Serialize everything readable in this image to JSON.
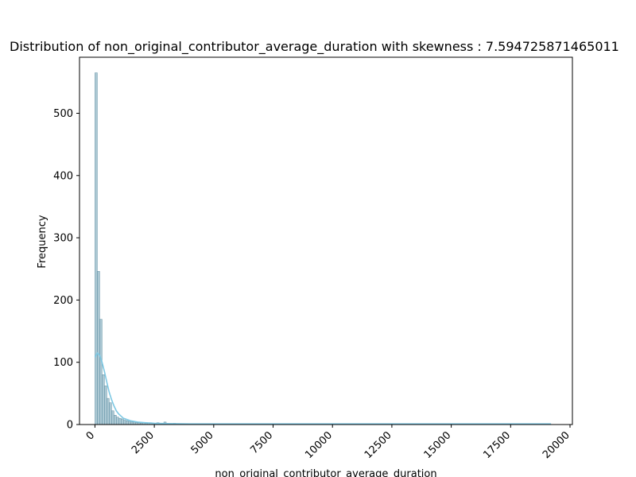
{
  "chart_data": {
    "type": "bar",
    "title": "Distribution of non_original_contributor_average_duration with skewness : 7.594725871465011",
    "xlabel": "non_original_contributor_average_duration",
    "ylabel": "Frequency",
    "xlim": [
      -650,
      20100
    ],
    "ylim": [
      0,
      590
    ],
    "x_ticks": [
      0,
      2500,
      5000,
      7500,
      10000,
      12500,
      15000,
      17500,
      20000
    ],
    "x_tick_labels": [
      "0",
      "2500",
      "5000",
      "7500",
      "10000",
      "12500",
      "15000",
      "17500",
      "20000"
    ],
    "y_ticks": [
      0,
      100,
      200,
      300,
      400,
      500
    ],
    "y_tick_labels": [
      "0",
      "100",
      "200",
      "300",
      "400",
      "500"
    ],
    "bin_width": 100,
    "bin_starts": [
      0,
      100,
      200,
      300,
      400,
      500,
      600,
      700,
      800,
      900,
      1000,
      1100,
      1200,
      1300,
      1400,
      1500,
      1600,
      1700,
      1800,
      1900,
      2000,
      2100,
      2200,
      2300,
      2400,
      2500,
      2600,
      2700,
      2800,
      2900,
      3000,
      3300,
      3600,
      4000,
      4500,
      5200,
      6000,
      6800,
      7800,
      8700,
      9600,
      10000,
      11000,
      12000,
      14000,
      15000,
      17500,
      19000
    ],
    "values": [
      565,
      246,
      169,
      80,
      62,
      42,
      35,
      22,
      15,
      12,
      10,
      9,
      7,
      6,
      5,
      4,
      4,
      3,
      3,
      2,
      3,
      2,
      2,
      3,
      2,
      2,
      3,
      2,
      2,
      4,
      1,
      2,
      1,
      1,
      1,
      1,
      1,
      1,
      1,
      1,
      1,
      1,
      1,
      1,
      1,
      1,
      1,
      1
    ],
    "kde": {
      "x": [
        0,
        100,
        200,
        300,
        400,
        500,
        600,
        700,
        800,
        900,
        1000,
        1200,
        1500,
        1800,
        2100,
        2500,
        3000,
        4000,
        5000,
        7000,
        10000,
        15000,
        19200
      ],
      "y": [
        108,
        115,
        111,
        100,
        85,
        68,
        52,
        40,
        30,
        22,
        17,
        10,
        6,
        4,
        3,
        2,
        1.5,
        1,
        1,
        1,
        1,
        1,
        1
      ]
    },
    "colors": {
      "bar_fill": "#9fbfcc",
      "bar_stroke": "#5f8fa3",
      "kde_line": "#7ec8e3",
      "axes": "#000000"
    },
    "grid": false,
    "legend": "none"
  }
}
